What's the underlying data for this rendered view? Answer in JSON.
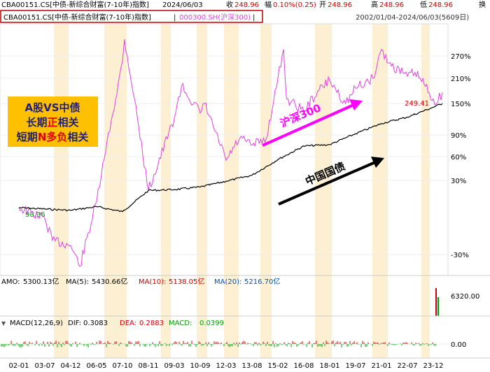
{
  "header": {
    "code": "CBA00151.CS[中债-新综合财富(7-10年)指数]",
    "date": "2024/06/03",
    "stats": [
      {
        "label": "收",
        "value": "248.96",
        "color": "#d00000"
      },
      {
        "label": "幅",
        "value": "0.10%(0.25)",
        "color": "#d00000"
      },
      {
        "label": "开",
        "value": "248.96",
        "color": "#d00000"
      },
      {
        "label": "高",
        "value": "248.96",
        "color": "#d00000"
      },
      {
        "label": "低",
        "value": "248.96",
        "color": "#d00000"
      }
    ],
    "switch_label": "换"
  },
  "legend": {
    "primary": "CBA00151.CS[中债-新综合财富(7-10年)指数]",
    "separator": "|",
    "secondary": "000300.SH(沪深300)",
    "secondary_color": "#ff00ff",
    "end_separator": "|"
  },
  "range_text": "2002/01/04-2024/06/03(5609日)",
  "annotations": {
    "box_lines": [
      "A股VS中债",
      "长期正相关",
      "短期N多负相关"
    ],
    "box_highlights": [
      {
        "line": 1,
        "text": "正",
        "color": "#e00000"
      },
      {
        "line": 2,
        "text": "N多负",
        "color": "#e00000"
      }
    ],
    "csi300_label": "沪深300",
    "bond_label": "中国国债",
    "last_value": "249.41",
    "start_value": "98.36"
  },
  "volume": {
    "label": "AMO:",
    "amo": "5300.13亿",
    "ma5_label": "MA(5):",
    "ma5": "5430.66亿",
    "ma10_label": "MA(10):",
    "ma10": "5138.05亿",
    "ma20_label": "MA(20):",
    "ma20": "5216.70亿",
    "axis_label": "6320.00"
  },
  "macd": {
    "title": "MACD(12,26,9)",
    "dif_label": "DIF:",
    "dif": "0.3083",
    "dea_label": "DEA:",
    "dea": "0.2883",
    "macd_label": "MACD:",
    "macd": "0.0399",
    "zero_label": "0.00"
  },
  "colors": {
    "bond": "#000000",
    "csi300": "#e040e0",
    "band": "#fdf0d2",
    "box_bg": "#ffc000",
    "arrow_pink": "#ff00ff",
    "red": "#d00000",
    "green": "#00a000"
  },
  "chart_data": {
    "type": "line",
    "y_axis_labels": [
      "270%",
      "210%",
      "150%",
      "90%",
      "60%",
      "30%",
      "-30%"
    ],
    "x_axis_labels": [
      "02-01",
      "03-07",
      "04-12",
      "06-05",
      "07-10",
      "08-11",
      "09-03",
      "10-09",
      "12-03",
      "13-08",
      "15-02",
      "16-08",
      "18-01",
      "19-07",
      "21-01",
      "22-07",
      "23-12"
    ],
    "series": [
      {
        "name": "CBA00151.CS[中债-新综合财富(7-10年)指数]",
        "x": [
          "02-01",
          "03-07",
          "04-12",
          "06-05",
          "07-10",
          "08-11",
          "09-03",
          "10-09",
          "12-03",
          "13-08",
          "15-02",
          "16-08",
          "18-01",
          "19-07",
          "21-01",
          "22-07",
          "23-12",
          "24-06"
        ],
        "values": [
          0,
          -1,
          -2,
          1,
          -3,
          18,
          19,
          22,
          29,
          36,
          56,
          74,
          76,
          92,
          110,
          122,
          142,
          150
        ]
      },
      {
        "name": "000300.SH(沪深300)",
        "x": [
          "02-01",
          "03-07",
          "03-12",
          "04-12",
          "05-06",
          "06-05",
          "06-10",
          "07-10",
          "07-11",
          "08-04",
          "08-11",
          "09-03",
          "09-08",
          "10-09",
          "10-12",
          "11-06",
          "12-03",
          "12-12",
          "13-08",
          "14-06",
          "15-02",
          "15-06",
          "15-08",
          "16-08",
          "17-06",
          "18-01",
          "18-12",
          "19-07",
          "20-07",
          "21-01",
          "21-06",
          "22-07",
          "22-12",
          "23-06",
          "23-12",
          "24-02",
          "24-06"
        ],
        "values": [
          0,
          -8,
          -22,
          -25,
          -36,
          6,
          57,
          255,
          322,
          160,
          18,
          120,
          190,
          130,
          150,
          105,
          55,
          85,
          75,
          85,
          210,
          290,
          160,
          135,
          180,
          205,
          150,
          185,
          210,
          290,
          250,
          215,
          225,
          195,
          160,
          150,
          175
        ]
      }
    ]
  }
}
